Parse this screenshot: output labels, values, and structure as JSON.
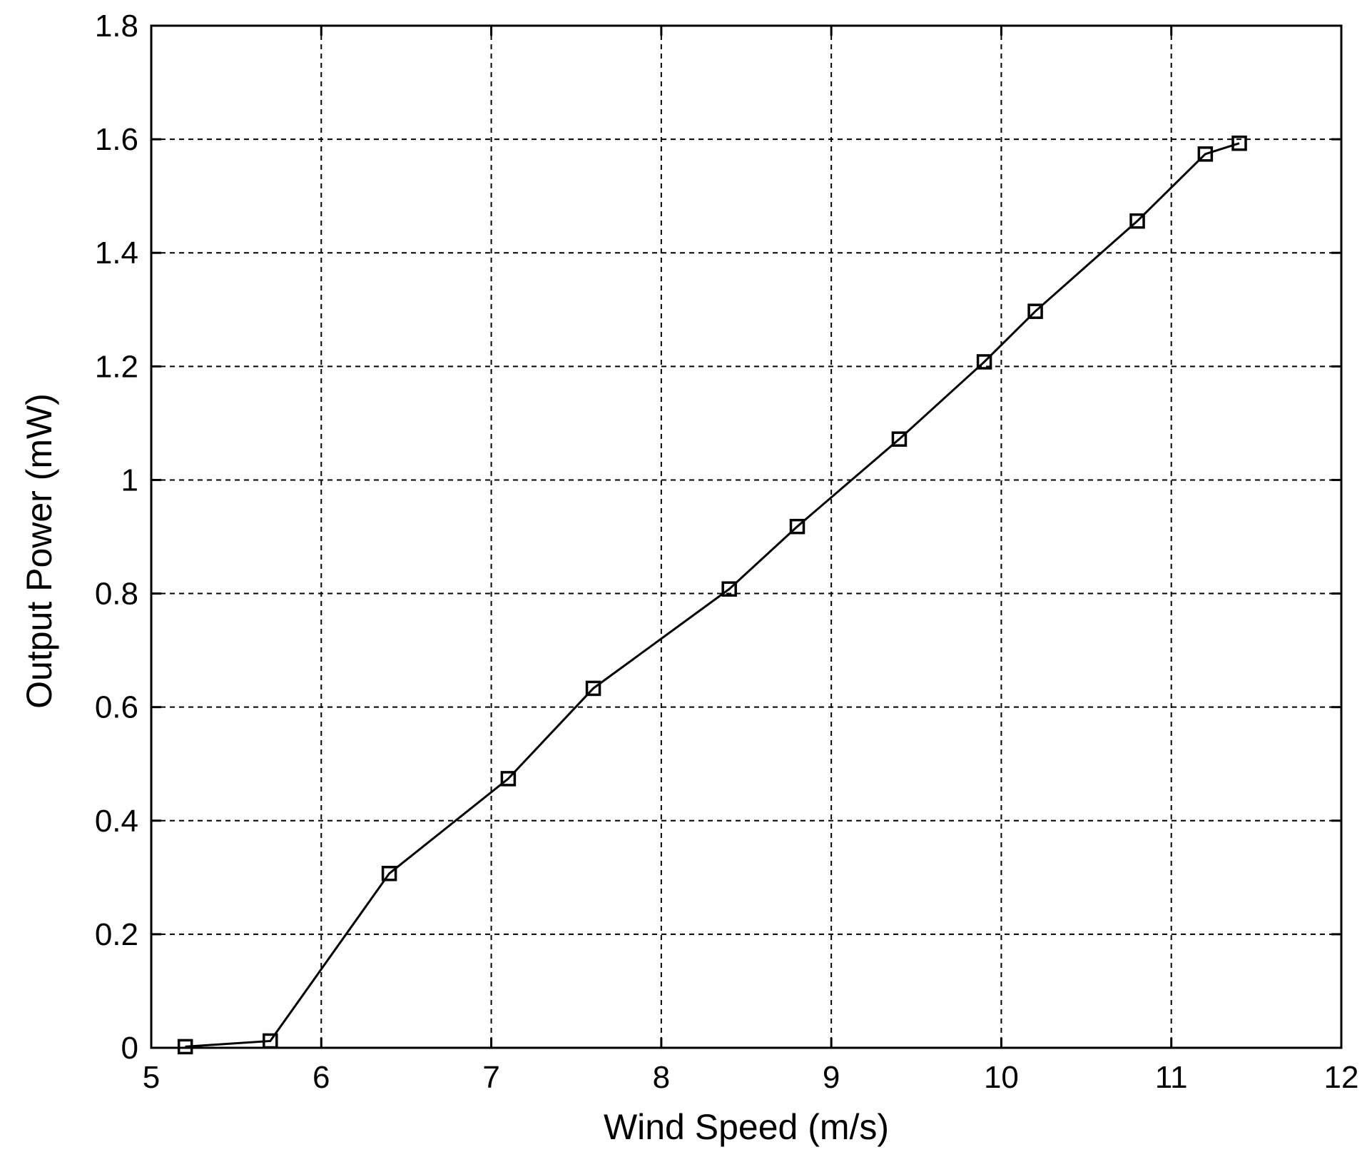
{
  "chart_data": {
    "type": "line",
    "title": "",
    "xlabel": "Wind Speed (m/s)",
    "ylabel": "Output Power (mW)",
    "xlim": [
      5,
      12
    ],
    "ylim": [
      0,
      1.8
    ],
    "xticks": [
      5,
      6,
      7,
      8,
      9,
      10,
      11,
      12
    ],
    "yticks": [
      0,
      0.2,
      0.4,
      0.6,
      0.8,
      1,
      1.2,
      1.4,
      1.6,
      1.8
    ],
    "x_tick_labels": [
      "5",
      "6",
      "7",
      "8",
      "9",
      "10",
      "11",
      "12"
    ],
    "y_tick_labels": [
      "0",
      "0.2",
      "0.4",
      "0.6",
      "0.8",
      "1",
      "1.2",
      "1.4",
      "1.6",
      "1.8"
    ],
    "grid": true,
    "marker": "square",
    "series": [
      {
        "x": [
          5.2,
          5.7,
          6.4,
          7.1,
          7.6,
          8.4,
          8.8,
          9.4,
          9.9,
          10.2,
          10.8,
          11.2,
          11.4
        ],
        "y": [
          0.002,
          0.012,
          0.307,
          0.474,
          0.633,
          0.808,
          0.918,
          1.072,
          1.208,
          1.297,
          1.456,
          1.574,
          1.593
        ]
      }
    ],
    "line_color": "#000000"
  }
}
